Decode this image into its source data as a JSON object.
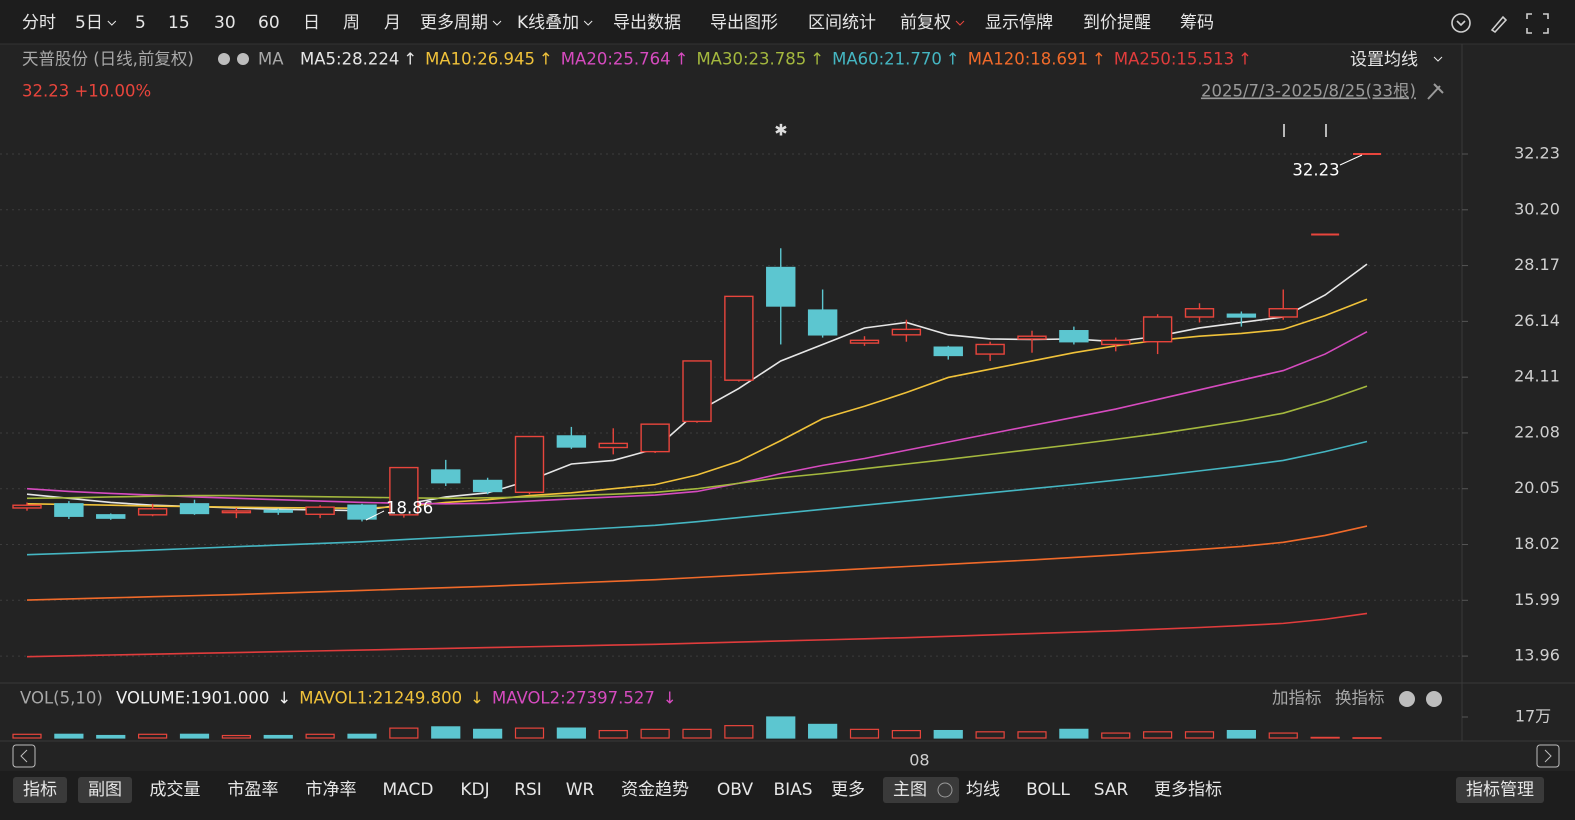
{
  "toolbar": [
    "分时",
    "5日",
    "5",
    "15",
    "30",
    "60",
    "日",
    "周",
    "月",
    "更多周期",
    "K线叠加",
    "导出数据",
    "导出图形",
    "区间统计",
    "前复权",
    "显示停牌",
    "到价提醒",
    "筹码"
  ],
  "ma_settings": "设置均线",
  "chart_data": {
    "type": "candlestick",
    "title": "天普股份 (日线,前复权)",
    "indicator": "MA",
    "price_change": "32.23 +10.00%",
    "range": "2025/7/3-2025/8/25(33根)",
    "annotations": [
      "32.23",
      "18.86"
    ],
    "categories": [
      null,
      null,
      null,
      null,
      null,
      null,
      null,
      null,
      null,
      null,
      null,
      null,
      null,
      null,
      null,
      null,
      null,
      null,
      null,
      null,
      null,
      "08",
      null,
      null,
      null,
      null,
      null,
      null,
      null,
      null,
      null,
      null,
      null
    ],
    "open": [
      19.35,
      19.5,
      19.1,
      19.1,
      19.5,
      19.18,
      19.26,
      19.12,
      19.45,
      19.1,
      20.73,
      20.35,
      19.92,
      21.97,
      21.55,
      21.4,
      22.5,
      24.0,
      28.1,
      26.55,
      25.35,
      25.65,
      25.2,
      24.95,
      25.5,
      25.8,
      25.3,
      25.4,
      26.3,
      26.4,
      26.3,
      29.3,
      32.23
    ],
    "high": [
      19.55,
      19.6,
      19.15,
      19.5,
      19.65,
      19.35,
      19.32,
      19.45,
      19.5,
      20.82,
      21.1,
      20.45,
      21.95,
      22.3,
      22.25,
      22.4,
      24.7,
      27.05,
      28.8,
      27.3,
      25.6,
      26.2,
      25.25,
      25.4,
      25.8,
      25.95,
      25.55,
      26.4,
      26.8,
      26.5,
      27.3,
      29.3,
      32.23
    ],
    "low": [
      19.25,
      18.95,
      18.92,
      19.05,
      19.1,
      18.98,
      19.1,
      18.98,
      18.86,
      19.0,
      20.15,
      19.85,
      19.85,
      21.5,
      21.3,
      21.35,
      22.45,
      23.95,
      25.3,
      25.55,
      25.25,
      25.4,
      24.75,
      24.7,
      25.0,
      25.3,
      25.05,
      24.95,
      26.1,
      25.95,
      26.2,
      29.3,
      32.23
    ],
    "close": [
      19.45,
      19.05,
      18.98,
      19.32,
      19.15,
      19.24,
      19.2,
      19.38,
      18.95,
      20.82,
      20.27,
      19.95,
      21.95,
      21.57,
      21.7,
      22.4,
      24.7,
      27.05,
      26.7,
      25.65,
      25.45,
      25.85,
      24.9,
      25.3,
      25.6,
      25.4,
      25.45,
      26.3,
      26.6,
      26.3,
      26.6,
      29.3,
      32.23
    ],
    "up_color": "#e8453c",
    "down_color": "#5cc6d0",
    "series": [
      {
        "label": "MA5:28.224",
        "arrow": "↑",
        "color": "#e6e6e6",
        "values": [
          19.85,
          19.7,
          19.55,
          19.45,
          19.4,
          19.35,
          19.3,
          19.28,
          19.25,
          19.48,
          19.75,
          19.9,
          20.35,
          20.95,
          21.08,
          21.5,
          22.85,
          23.7,
          24.7,
          25.3,
          25.9,
          26.1,
          25.65,
          25.5,
          25.48,
          25.5,
          25.4,
          25.6,
          25.9,
          26.1,
          26.3,
          27.1,
          28.224
        ]
      },
      {
        "label": "MA10:26.945",
        "arrow": "↑",
        "color": "#f0c23a",
        "values": [
          19.5,
          19.48,
          19.45,
          19.42,
          19.4,
          19.38,
          19.36,
          19.35,
          19.34,
          19.4,
          19.55,
          19.65,
          19.8,
          19.9,
          20.05,
          20.2,
          20.55,
          21.05,
          21.8,
          22.6,
          23.05,
          23.55,
          24.1,
          24.4,
          24.7,
          25.0,
          25.25,
          25.45,
          25.6,
          25.7,
          25.85,
          26.35,
          26.945
        ]
      },
      {
        "label": "MA20:25.764",
        "arrow": "↑",
        "color": "#d64bbf",
        "values": [
          20.05,
          19.95,
          19.88,
          19.82,
          19.75,
          19.7,
          19.65,
          19.6,
          19.55,
          19.52,
          19.5,
          19.52,
          19.6,
          19.68,
          19.75,
          19.82,
          19.95,
          20.25,
          20.6,
          20.9,
          21.15,
          21.45,
          21.75,
          22.05,
          22.35,
          22.65,
          22.95,
          23.3,
          23.65,
          24.0,
          24.35,
          24.95,
          25.764
        ]
      },
      {
        "label": "MA30:23.785",
        "arrow": "↑",
        "color": "#a4b83e",
        "values": [
          19.7,
          19.72,
          19.75,
          19.78,
          19.8,
          19.8,
          19.78,
          19.76,
          19.74,
          19.72,
          19.7,
          19.72,
          19.75,
          19.8,
          19.85,
          19.92,
          20.05,
          20.25,
          20.45,
          20.6,
          20.78,
          20.95,
          21.12,
          21.3,
          21.48,
          21.66,
          21.85,
          22.05,
          22.28,
          22.52,
          22.8,
          23.25,
          23.785
        ]
      },
      {
        "label": "MA60:21.770",
        "arrow": "↑",
        "color": "#45b6c2",
        "values": [
          17.65,
          17.7,
          17.76,
          17.82,
          17.88,
          17.94,
          18.0,
          18.06,
          18.12,
          18.2,
          18.28,
          18.36,
          18.45,
          18.54,
          18.63,
          18.72,
          18.85,
          19.0,
          19.15,
          19.3,
          19.45,
          19.6,
          19.75,
          19.9,
          20.05,
          20.2,
          20.36,
          20.52,
          20.7,
          20.88,
          21.08,
          21.4,
          21.77
        ]
      },
      {
        "label": "MA120:18.691",
        "arrow": "↑",
        "color": "#f06a2a",
        "values": [
          16.0,
          16.04,
          16.08,
          16.12,
          16.16,
          16.2,
          16.25,
          16.3,
          16.35,
          16.4,
          16.45,
          16.5,
          16.56,
          16.62,
          16.68,
          16.74,
          16.82,
          16.9,
          16.98,
          17.06,
          17.14,
          17.22,
          17.3,
          17.38,
          17.46,
          17.55,
          17.64,
          17.74,
          17.84,
          17.95,
          18.1,
          18.35,
          18.691
        ]
      },
      {
        "label": "MA250:15.513",
        "arrow": "↑",
        "color": "#e03c3c",
        "values": [
          13.94,
          13.97,
          14.0,
          14.03,
          14.06,
          14.09,
          14.12,
          14.15,
          14.18,
          14.21,
          14.24,
          14.27,
          14.3,
          14.33,
          14.36,
          14.39,
          14.43,
          14.47,
          14.51,
          14.55,
          14.59,
          14.63,
          14.68,
          14.73,
          14.78,
          14.83,
          14.88,
          14.94,
          15.0,
          15.07,
          15.15,
          15.3,
          15.513
        ]
      }
    ],
    "ylim": [
      13.09,
      32.74
    ],
    "yticks": [
      32.23,
      {
        "value": 30.2,
        "label": "30.20"
      },
      28.17,
      26.14,
      24.11,
      22.08,
      20.05,
      18.02,
      15.99,
      13.96
    ],
    "grid": true
  },
  "volume": {
    "label": "VOL(5,10)",
    "readouts": [
      {
        "text": "VOLUME:1901.000",
        "arrow": "↓",
        "color": "#f0f0f0"
      },
      {
        "text": "MAVOL1:21249.800",
        "arrow": "↓",
        "color": "#f0c23a"
      },
      {
        "text": "MAVOL2:27397.527",
        "arrow": "↓",
        "color": "#d64bbf"
      }
    ],
    "buttons": [
      "加指标",
      "换指标"
    ],
    "values": [
      3,
      3,
      2,
      3,
      3,
      2,
      2,
      3,
      3,
      8,
      9,
      7,
      8,
      8,
      6,
      7,
      7,
      10,
      17,
      11,
      7,
      6,
      6,
      5,
      5,
      7,
      4,
      5,
      5,
      6,
      4,
      0.5,
      0.19
    ],
    "ylim": [
      0,
      17
    ],
    "yticks": [
      {
        "value": 17,
        "label": "17万"
      }
    ]
  },
  "bottom_tabs": [
    "指标",
    "副图",
    "成交量",
    "市盈率",
    "市净率",
    "MACD",
    "KDJ",
    "RSI",
    "WR",
    "资金趋势",
    "OBV",
    "BIAS",
    "更多",
    "主图",
    "均线",
    "BOLL",
    "SAR",
    "更多指标",
    "指标管理"
  ]
}
